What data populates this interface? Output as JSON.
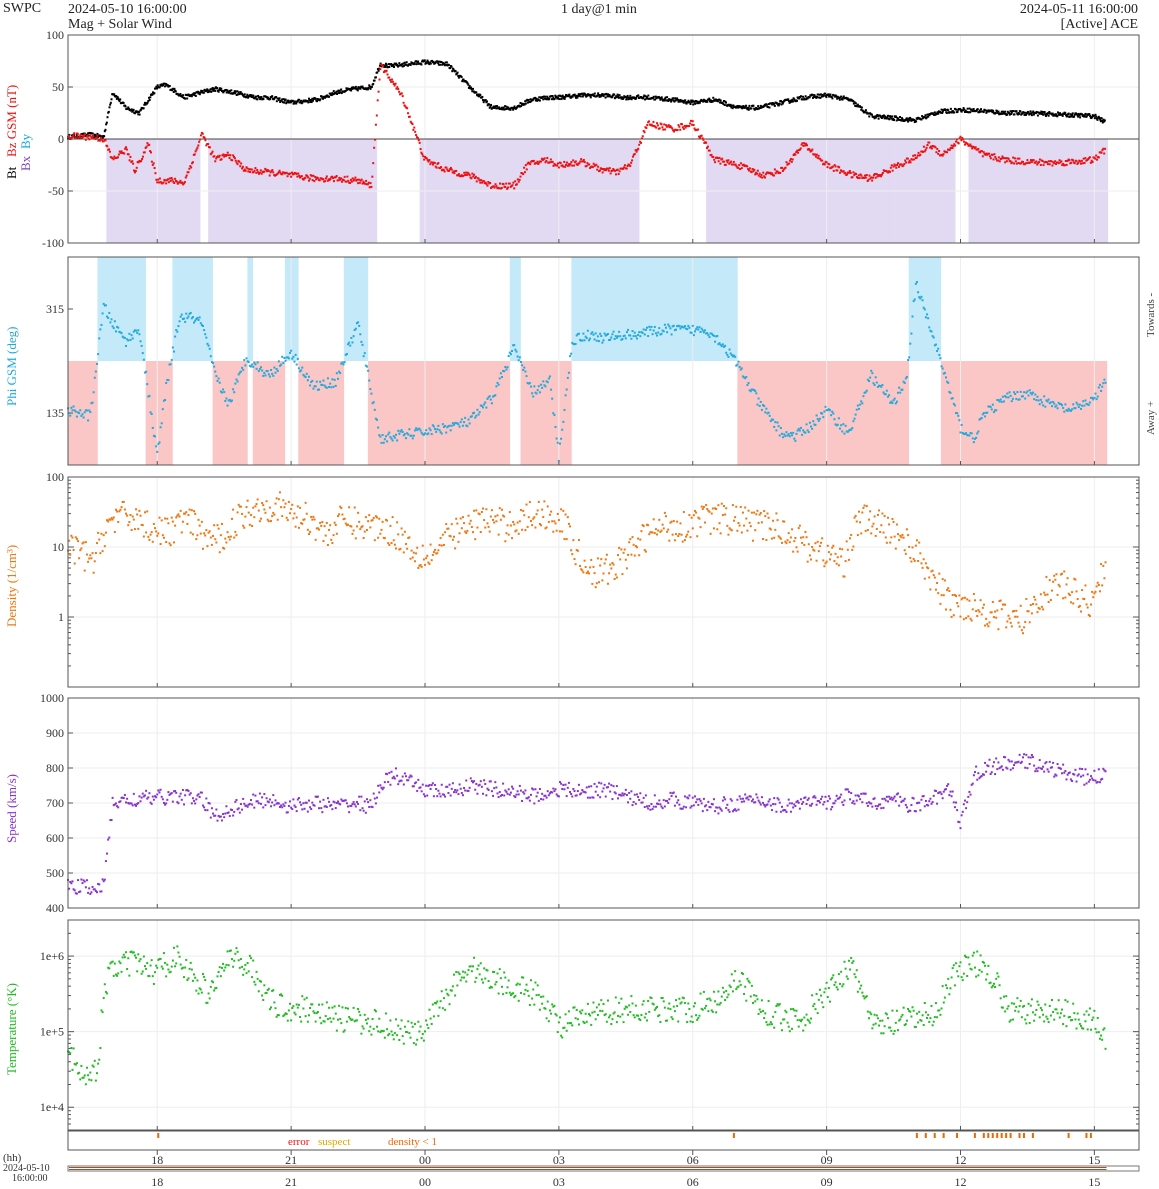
{
  "header": {
    "org": "SWPC",
    "start_time": "2024-05-10 16:00:00",
    "subtitle": "Mag + Solar Wind",
    "window": "1 day@1 min",
    "end_time": "2024-05-11 16:00:00",
    "source": "[Active] ACE"
  },
  "colors": {
    "bt": "#000000",
    "bz": "#ee1111",
    "by": "#11aadd",
    "bx": "#7744bb",
    "bz_fill": "#e2d9f2",
    "phi": "#22aadd",
    "towards_fill": "#c4e9f8",
    "away_fill": "#fbc6c6",
    "density": "#ee7711",
    "speed": "#8833cc",
    "temperature": "#22bb22",
    "error": "#ee1111",
    "suspect": "#ddaa00",
    "density_lt_1": "#ee6600"
  },
  "chart_data": [
    {
      "type": "scatter",
      "panel": "magnetic field",
      "ylabel_parts": [
        "Bt",
        "Bz GSM (nT)",
        "Bx",
        "By"
      ],
      "ylim": [
        -100,
        100
      ],
      "yticks": [
        "100",
        "50",
        "0",
        "-50",
        "-100"
      ],
      "y_scale": "linear",
      "series": [
        {
          "name": "Bt",
          "x_hours": [
            0,
            0.5,
            0.8,
            1.0,
            1.3,
            1.6,
            2.0,
            2.2,
            2.6,
            3.0,
            3.3,
            3.7,
            4.2,
            4.5,
            5.0,
            5.6,
            6.0,
            6.4,
            6.8,
            7.0,
            7.2,
            7.6,
            8.0,
            8.5,
            9.0,
            9.5,
            10.0,
            10.4,
            10.8,
            11.0,
            11.5,
            12.0,
            12.5,
            13.0,
            13.5,
            14.0,
            14.5,
            15.0,
            15.5,
            16.0,
            16.5,
            17.0,
            17.5,
            18.0,
            18.5,
            19.0,
            19.5,
            20.0,
            20.5,
            21.0,
            21.5,
            22.0,
            22.5,
            23.0,
            23.25
          ],
          "values": [
            2,
            4,
            2,
            45,
            30,
            25,
            50,
            52,
            40,
            45,
            48,
            45,
            40,
            40,
            35,
            38,
            45,
            48,
            50,
            72,
            70,
            72,
            74,
            72,
            50,
            30,
            30,
            38,
            40,
            40,
            42,
            42,
            40,
            40,
            38,
            35,
            38,
            30,
            30,
            35,
            40,
            42,
            38,
            22,
            20,
            18,
            26,
            28,
            27,
            25,
            25,
            24,
            23,
            22,
            16
          ]
        },
        {
          "name": "Bz GSM",
          "x_hours": [
            0,
            0.5,
            0.8,
            1.0,
            1.3,
            1.5,
            1.8,
            2.0,
            2.3,
            2.6,
            2.8,
            3.0,
            3.3,
            3.6,
            4.0,
            4.5,
            5.0,
            5.5,
            6.0,
            6.5,
            6.8,
            7.0,
            7.2,
            7.5,
            8.0,
            8.5,
            9.0,
            9.5,
            10.0,
            10.3,
            10.7,
            11.0,
            11.5,
            12.0,
            12.3,
            12.6,
            13.0,
            13.3,
            13.6,
            14.0,
            14.5,
            15.0,
            15.3,
            15.6,
            16.0,
            16.5,
            17.0,
            17.3,
            17.6,
            18.0,
            18.3,
            18.6,
            19.0,
            19.3,
            19.6,
            20.0,
            20.5,
            21.0,
            21.5,
            22.0,
            22.5,
            23.0,
            23.25
          ],
          "values": [
            3,
            2,
            0,
            -20,
            -10,
            -30,
            -5,
            -40,
            -40,
            -42,
            -20,
            5,
            -20,
            -15,
            -30,
            -32,
            -35,
            -38,
            -38,
            -40,
            -45,
            70,
            60,
            40,
            -20,
            -30,
            -35,
            -45,
            -45,
            -25,
            -20,
            -25,
            -22,
            -30,
            -32,
            -25,
            15,
            12,
            10,
            15,
            -20,
            -25,
            -30,
            -35,
            -30,
            -5,
            -25,
            -30,
            -35,
            -38,
            -32,
            -25,
            -18,
            -5,
            -15,
            0,
            -15,
            -20,
            -22,
            -23,
            -22,
            -20,
            -10
          ]
        }
      ],
      "bz_shading": "negative Bz intervals shaded",
      "zero_line": true
    },
    {
      "type": "scatter",
      "panel": "magnetic field direction",
      "ylabel": "Phi GSM (deg)",
      "ylim": [
        45,
        405
      ],
      "yticks": [
        "315",
        "135"
      ],
      "right_labels": [
        "Towards -",
        "Away +"
      ],
      "series": [
        {
          "name": "Phi GSM",
          "x_hours": [
            0,
            0.5,
            0.8,
            1.0,
            1.3,
            1.6,
            2.0,
            2.2,
            2.5,
            2.8,
            3.0,
            3.3,
            3.6,
            4.0,
            4.5,
            5.0,
            5.5,
            6.0,
            6.5,
            7.0,
            7.3,
            7.8,
            8.5,
            9.0,
            9.5,
            10.0,
            10.4,
            10.8,
            11.0,
            11.3,
            11.6,
            12.0,
            12.5,
            13.0,
            13.5,
            14.0,
            14.3,
            14.6,
            15.0,
            15.5,
            16.0,
            16.3,
            16.6,
            17.0,
            17.5,
            18.0,
            18.5,
            18.8,
            19.0,
            19.2,
            19.5,
            20.0,
            20.3,
            20.5,
            21.0,
            21.5,
            22.0,
            22.5,
            23.0,
            23.25
          ],
          "values": [
            140,
            130,
            320,
            290,
            260,
            280,
            60,
            180,
            300,
            300,
            290,
            200,
            150,
            230,
            200,
            240,
            180,
            190,
            290,
            90,
            95,
            100,
            110,
            120,
            160,
            250,
            170,
            190,
            60,
            260,
            270,
            265,
            270,
            275,
            280,
            278,
            280,
            260,
            220,
            150,
            100,
            95,
            110,
            140,
            100,
            200,
            150,
            200,
            360,
            310,
            240,
            110,
            90,
            130,
            160,
            170,
            150,
            140,
            160,
            190
          ]
        }
      ],
      "sector_shading": "towards (blue) / away (red) sectors"
    },
    {
      "type": "scatter",
      "panel": "density",
      "ylabel": "Density (1/cm³)",
      "y_scale": "log",
      "ylim": [
        0.1,
        100
      ],
      "yticks": [
        "100",
        "10",
        "1"
      ],
      "series": [
        {
          "name": "Density",
          "x_hours": [
            0,
            0.3,
            0.6,
            1.0,
            1.4,
            1.8,
            2.2,
            2.6,
            3.0,
            3.4,
            3.8,
            4.2,
            4.6,
            5.0,
            5.4,
            5.8,
            6.2,
            6.6,
            7.0,
            7.4,
            7.8,
            8.2,
            8.6,
            9.0,
            9.4,
            9.8,
            10.2,
            10.6,
            11.0,
            11.4,
            11.8,
            12.2,
            12.6,
            13.0,
            13.4,
            13.8,
            14.2,
            14.6,
            15.0,
            15.4,
            15.8,
            16.2,
            16.6,
            17.0,
            17.4,
            17.8,
            18.2,
            18.6,
            19.0,
            19.4,
            19.8,
            20.2,
            20.6,
            21.0,
            21.4,
            21.8,
            22.2,
            22.6,
            23.0,
            23.25
          ],
          "values": [
            10,
            8,
            6,
            25,
            28,
            20,
            15,
            25,
            15,
            12,
            25,
            35,
            40,
            30,
            25,
            15,
            25,
            20,
            20,
            15,
            8,
            8,
            15,
            20,
            25,
            20,
            25,
            30,
            25,
            8,
            4,
            5,
            8,
            15,
            20,
            20,
            25,
            25,
            25,
            20,
            20,
            15,
            10,
            8,
            6,
            25,
            20,
            15,
            8,
            3,
            1.5,
            1.5,
            1.2,
            1,
            0.9,
            2,
            3,
            2,
            1.5,
            6
          ]
        }
      ]
    },
    {
      "type": "scatter",
      "panel": "speed",
      "ylabel": "Speed (km/s)",
      "ylim": [
        400,
        1000
      ],
      "yticks": [
        "1000",
        "900",
        "800",
        "700",
        "600",
        "500",
        "400"
      ],
      "series": [
        {
          "name": "Speed",
          "x_hours": [
            0,
            0.3,
            0.6,
            0.8,
            1.0,
            1.5,
            2.0,
            2.5,
            3.0,
            3.3,
            3.6,
            4.0,
            4.5,
            5.0,
            5.5,
            6.0,
            6.5,
            6.8,
            7.0,
            7.3,
            7.6,
            8.0,
            8.5,
            9.0,
            9.5,
            10.0,
            10.5,
            11.0,
            11.5,
            12.0,
            12.5,
            13.0,
            13.5,
            14.0,
            14.5,
            15.0,
            15.5,
            16.0,
            16.5,
            17.0,
            17.5,
            18.0,
            18.5,
            19.0,
            19.5,
            19.8,
            20.0,
            20.3,
            20.6,
            21.0,
            21.5,
            22.0,
            22.5,
            23.0,
            23.25
          ],
          "values": [
            460,
            460,
            460,
            460,
            700,
            710,
            715,
            720,
            710,
            660,
            680,
            700,
            710,
            690,
            700,
            690,
            700,
            690,
            750,
            780,
            760,
            740,
            730,
            750,
            740,
            730,
            720,
            740,
            730,
            740,
            720,
            700,
            710,
            700,
            690,
            700,
            710,
            690,
            700,
            700,
            720,
            700,
            710,
            690,
            720,
            740,
            640,
            780,
            800,
            810,
            820,
            800,
            780,
            770,
            790
          ]
        }
      ]
    },
    {
      "type": "scatter",
      "panel": "temperature",
      "ylabel": "Temperature (°K)",
      "y_scale": "log",
      "ylim": [
        5000,
        3000000
      ],
      "yticks": [
        "1e+6",
        "1e+5",
        "1e+4"
      ],
      "series": [
        {
          "name": "Temperature",
          "x_hours": [
            0,
            0.4,
            0.7,
            1.0,
            1.5,
            2.0,
            2.4,
            2.8,
            3.2,
            3.6,
            4.0,
            4.5,
            5.0,
            5.5,
            6.0,
            6.5,
            7.0,
            7.5,
            8.0,
            8.5,
            9.0,
            9.5,
            10.0,
            10.5,
            11.0,
            11.5,
            12.0,
            12.5,
            13.0,
            13.5,
            14.0,
            14.5,
            15.0,
            15.5,
            16.0,
            16.5,
            17.0,
            17.5,
            18.0,
            18.5,
            19.0,
            19.5,
            19.8,
            20.0,
            20.5,
            21.0,
            21.5,
            22.0,
            22.5,
            23.0,
            23.25
          ],
          "values": [
            45000,
            30000,
            30000,
            700000,
            800000,
            600000,
            1000000,
            500000,
            300000,
            900000,
            800000,
            250000,
            200000,
            200000,
            150000,
            140000,
            130000,
            100000,
            90000,
            300000,
            700000,
            500000,
            400000,
            300000,
            120000,
            150000,
            180000,
            200000,
            200000,
            200000,
            200000,
            250000,
            500000,
            200000,
            150000,
            150000,
            300000,
            700000,
            120000,
            130000,
            150000,
            180000,
            500000,
            700000,
            800000,
            200000,
            180000,
            190000,
            170000,
            140000,
            70000
          ]
        }
      ]
    },
    {
      "type": "table",
      "panel": "data quality flags",
      "legend": [
        "error",
        "suspect",
        "density < 1"
      ]
    }
  ],
  "time_axis": {
    "unit_label": "(hh)",
    "date_label": "2024-05-10",
    "time_label": "16:00:00",
    "tick_labels": [
      "18",
      "21",
      "00",
      "03",
      "06",
      "09",
      "12",
      "15"
    ],
    "tick_hours_from_start": [
      2,
      5,
      8,
      11,
      14,
      17,
      20,
      23
    ]
  }
}
